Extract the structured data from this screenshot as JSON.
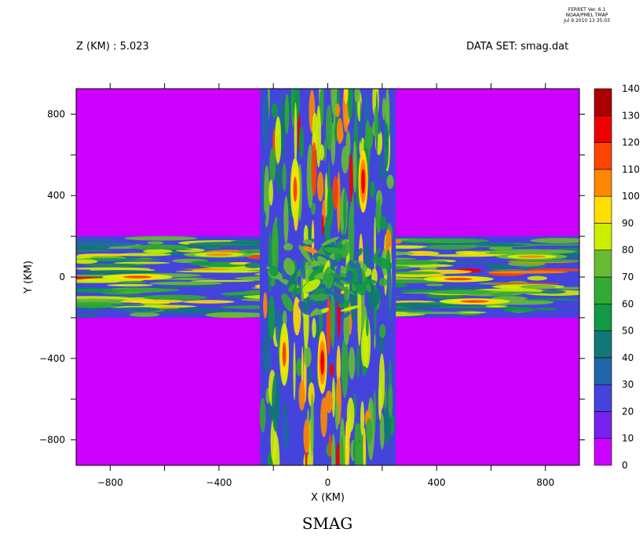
{
  "stamp": {
    "line1": "FERRET Ver. 6.1",
    "line2": "NOAA/PMEL TMAP",
    "line3": "Jul  9 2010 13 35:03"
  },
  "header": {
    "left": "Z (KM) : 5.023",
    "right": "DATA SET: smag.dat"
  },
  "chart_data": {
    "type": "heatmap",
    "title": "SMAG",
    "xlabel": "X (KM)",
    "ylabel": "Y (KM)",
    "xlim": [
      -925,
      925
    ],
    "ylim": [
      -925,
      925
    ],
    "xticks_labeled": [
      -800,
      -400,
      0,
      400,
      800
    ],
    "xtick_labels": [
      "−800",
      "−400",
      "0",
      "400",
      "800"
    ],
    "yticks_labeled": [
      800,
      400,
      0,
      -400,
      -800
    ],
    "ytick_labels": [
      "800",
      "400",
      "0",
      "−400",
      "−800"
    ],
    "minor_ticks": [
      -600,
      -200,
      200,
      600
    ],
    "grid": false,
    "background_value": 0,
    "colorbar": {
      "levels": [
        0,
        10,
        20,
        30,
        40,
        50,
        60,
        70,
        80,
        90,
        100,
        110,
        120,
        130,
        140
      ],
      "labels": [
        "0",
        "10",
        "20",
        "30",
        "40",
        "50",
        "60",
        "70",
        "80",
        "90",
        "100",
        "110",
        "120",
        "130",
        "140"
      ],
      "colors": [
        "#cc00ff",
        "#7722ee",
        "#4444dd",
        "#2266aa",
        "#117777",
        "#119944",
        "#33aa33",
        "#66bb33",
        "#ccee00",
        "#ffdd00",
        "#ff8800",
        "#ff4400",
        "#ee0000",
        "#aa0000"
      ]
    },
    "structure": {
      "horizontal_band": {
        "y_range": [
          -200,
          200
        ],
        "x_range": [
          -925,
          925
        ]
      },
      "vertical_band": {
        "x_range": [
          -250,
          250
        ],
        "y_range": [
          -925,
          925
        ]
      },
      "peak_regions": [
        {
          "x": -120,
          "y": 430,
          "value": 110
        },
        {
          "x": 130,
          "y": 470,
          "value": 120
        },
        {
          "x": -20,
          "y": -420,
          "value": 120
        },
        {
          "x": -160,
          "y": -380,
          "value": 110
        },
        {
          "x": -700,
          "y": 0,
          "value": 110
        },
        {
          "x": 480,
          "y": -10,
          "value": 110
        },
        {
          "x": 540,
          "y": -120,
          "value": 110
        },
        {
          "x": -400,
          "y": 110,
          "value": 100
        },
        {
          "x": 750,
          "y": 100,
          "value": 100
        }
      ]
    }
  }
}
